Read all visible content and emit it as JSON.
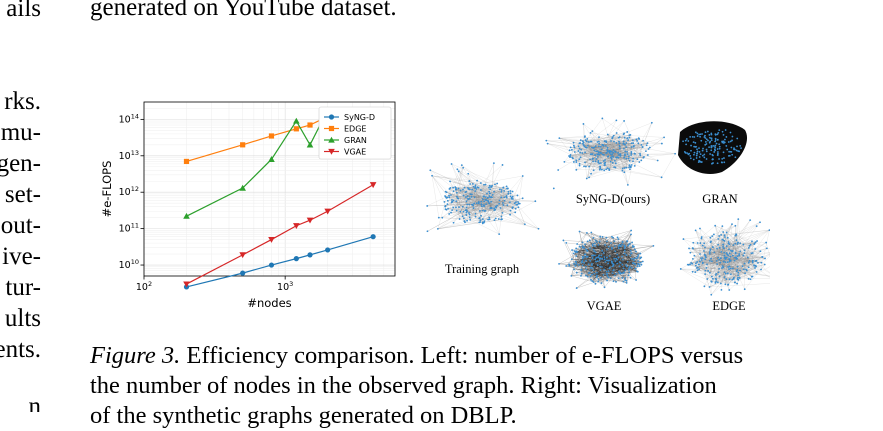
{
  "body_text": {
    "left_fragments": [
      "ails",
      "rks.",
      "mu-",
      "gen-",
      "set-",
      "out-",
      "ive-",
      "tur-",
      "ults",
      "ents.",
      "n"
    ],
    "top_line": "generated on YouTube dataset."
  },
  "caption": {
    "label": "Figure 3.",
    "line1": "Efficiency comparison. Left: number of e-FLOPS versus",
    "line2": "the number of nodes in the observed graph. Right: Visualization",
    "line3": "of the synthetic graphs generated on DBLP."
  },
  "graph_panel": {
    "training_label": "Training graph",
    "labels": [
      "SyNG-D(ours)",
      "GRAN",
      "VGAE",
      "EDGE"
    ]
  },
  "chart_data": {
    "type": "line",
    "xlabel": "#nodes",
    "ylabel": "#e-FLOPS",
    "x_scale": "log",
    "y_scale": "log",
    "xlim": [
      100,
      6000
    ],
    "ylim": [
      5000000000,
      300000000000000
    ],
    "x_ticks": [
      {
        "value": 100,
        "base": "10",
        "exp": "2"
      },
      {
        "value": 1000,
        "base": "10",
        "exp": "3"
      }
    ],
    "y_ticks": [
      {
        "value": 10000000000,
        "base": "10",
        "exp": "10"
      },
      {
        "value": 100000000000,
        "base": "10",
        "exp": "11"
      },
      {
        "value": 1000000000000,
        "base": "10",
        "exp": "12"
      },
      {
        "value": 10000000000000,
        "base": "10",
        "exp": "13"
      },
      {
        "value": 100000000000000,
        "base": "10",
        "exp": "14"
      }
    ],
    "grid": true,
    "legend_position": "top-right",
    "series": [
      {
        "name": "SyNG-D",
        "color": "#1f77b4",
        "marker": "circle",
        "x": [
          200,
          500,
          800,
          1200,
          1500,
          2000,
          4200
        ],
        "y": [
          2500000000,
          6000000000,
          10000000000,
          15000000000,
          19000000000,
          26000000000,
          60000000000
        ]
      },
      {
        "name": "EDGE",
        "color": "#ff7f0e",
        "marker": "square",
        "x": [
          200,
          500,
          800,
          1200,
          1500,
          2000
        ],
        "y": [
          7000000000000,
          20000000000000,
          35000000000000,
          55000000000000,
          70000000000000,
          120000000000000
        ]
      },
      {
        "name": "GRAN",
        "color": "#2ca02c",
        "marker": "triangle-up",
        "x": [
          200,
          500,
          800,
          1200,
          1500,
          2000
        ],
        "y": [
          220000000000,
          1300000000000,
          8000000000000,
          90000000000000,
          20000000000000,
          180000000000000
        ]
      },
      {
        "name": "VGAE",
        "color": "#d62728",
        "marker": "triangle-down",
        "x": [
          200,
          500,
          800,
          1200,
          1500,
          2000,
          4200
        ],
        "y": [
          3000000000,
          19000000000,
          50000000000,
          120000000000,
          170000000000,
          300000000000,
          1600000000000
        ]
      }
    ]
  }
}
